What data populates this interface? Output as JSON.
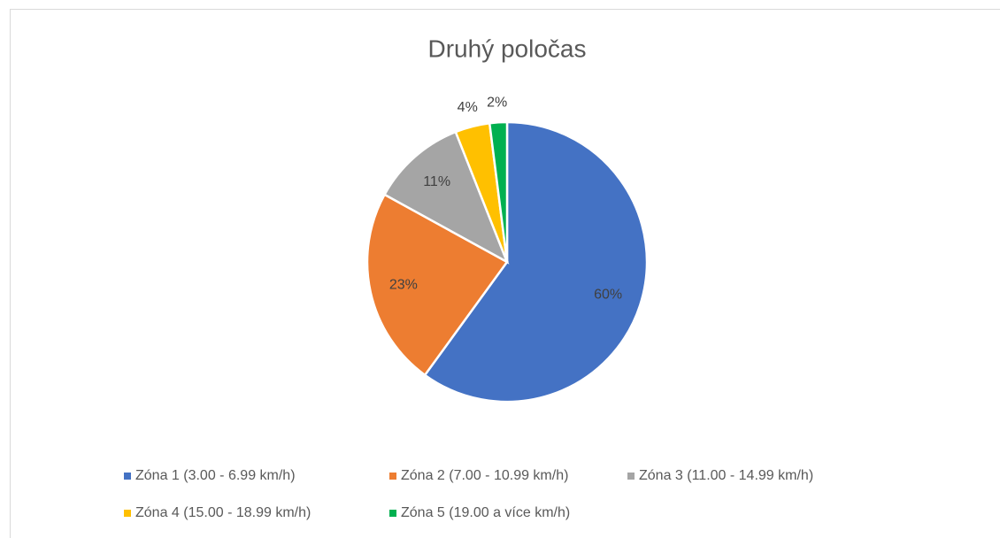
{
  "chart_data": {
    "type": "pie",
    "title": "Druhý poločas",
    "categories": [
      "Zóna 1 (3.00 - 6.99 km/h)",
      "Zóna 2 (7.00 - 10.99 km/h)",
      "Zóna 3 (11.00 - 14.99 km/h)",
      "Zóna 4 (15.00 - 18.99 km/h)",
      "Zóna 5 (19.00 a více km/h)"
    ],
    "values": [
      60,
      23,
      11,
      4,
      2
    ],
    "value_labels": [
      "60%",
      "23%",
      "11%",
      "4%",
      "2%"
    ],
    "colors": [
      "#4472c4",
      "#ed7d31",
      "#a5a5a5",
      "#ffc000",
      "#00b050"
    ],
    "legend": "bottom"
  }
}
